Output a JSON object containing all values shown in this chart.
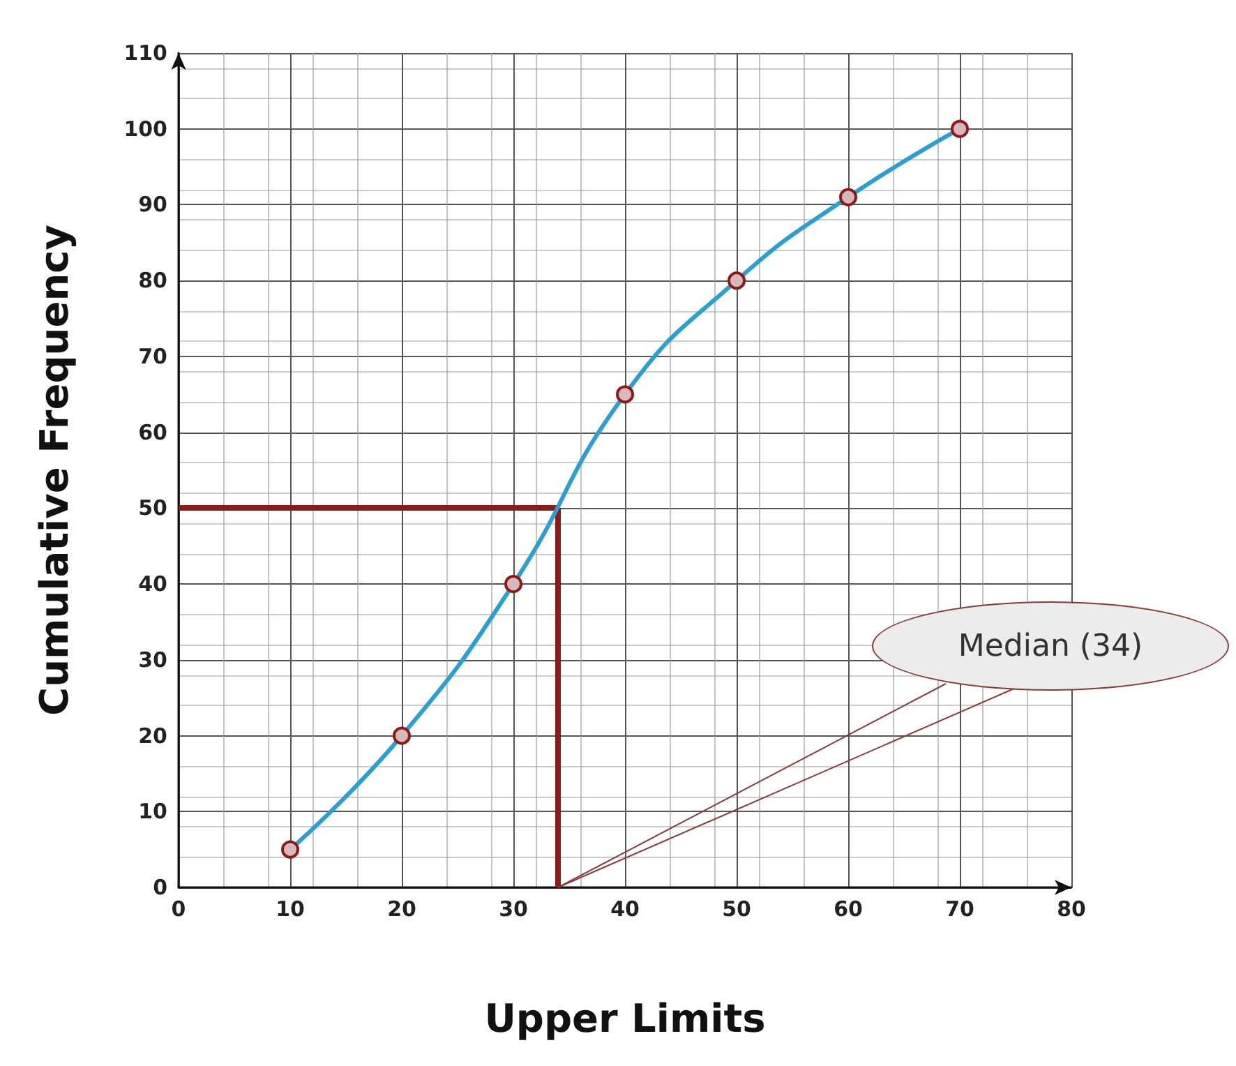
{
  "chart_data": {
    "type": "line",
    "xlabel": "Upper Limits",
    "ylabel": "Cumulative Frequency",
    "x": [
      10,
      20,
      30,
      40,
      50,
      60,
      70
    ],
    "series": [
      {
        "color": "#2a9fd0",
        "values": [
          5,
          20,
          40,
          65,
          80,
          91,
          100
        ]
      }
    ],
    "xlim": [
      0,
      80
    ],
    "xticks": [
      0,
      10,
      20,
      30,
      40,
      50,
      60,
      70,
      80
    ],
    "ylim": [
      0,
      110
    ],
    "yticks": [
      0,
      10,
      20,
      30,
      40,
      50,
      60,
      70,
      80,
      90,
      100,
      110
    ],
    "grid": true,
    "marker": "circle",
    "line_style": "solid",
    "ref_lines": [
      {
        "axis": "x",
        "value": 34,
        "color": "#8b1a1a"
      },
      {
        "axis": "y",
        "value": 50,
        "color": "#8b1a1a"
      }
    ],
    "annotations": [
      {
        "text": "Median (34)",
        "x": 34,
        "y": 0
      }
    ]
  }
}
